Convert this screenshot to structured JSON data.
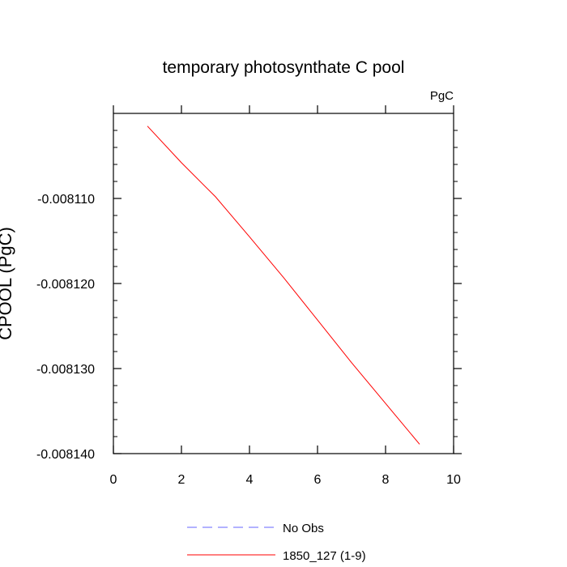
{
  "chart_data": {
    "type": "line",
    "title": "temporary photosynthate C pool",
    "units_label": "PgC",
    "ylabel": "CPOOL  (PgC)",
    "xlabel": "",
    "xlim": [
      0,
      10
    ],
    "ylim": [
      -0.00814,
      -0.0081
    ],
    "x_ticks": [
      0,
      2,
      4,
      6,
      8,
      10
    ],
    "x_tick_labels": [
      "0",
      "2",
      "4",
      "6",
      "8",
      "10"
    ],
    "y_ticks": [
      -0.00811,
      -0.00812,
      -0.00813,
      -0.00814
    ],
    "y_tick_labels": [
      "-0.008110",
      "-0.008120",
      "-0.008130",
      "-0.008140"
    ],
    "grid": false,
    "legend_position": "bottom",
    "series": [
      {
        "name": "1850_127 (1-9)",
        "color": "#ff0000",
        "style": "solid",
        "x": [
          1,
          2,
          3,
          4,
          5,
          6,
          7,
          8,
          9
        ],
        "values": [
          -0.0081015,
          -0.0081058,
          -0.0081098,
          -0.0081145,
          -0.0081193,
          -0.0081243,
          -0.0081293,
          -0.0081341,
          -0.0081389
        ]
      }
    ],
    "legend": [
      {
        "label": "No Obs",
        "color": "#6666ff",
        "style": "dashed"
      },
      {
        "label": "1850_127 (1-9)",
        "color": "#ff0000",
        "style": "solid"
      }
    ]
  }
}
